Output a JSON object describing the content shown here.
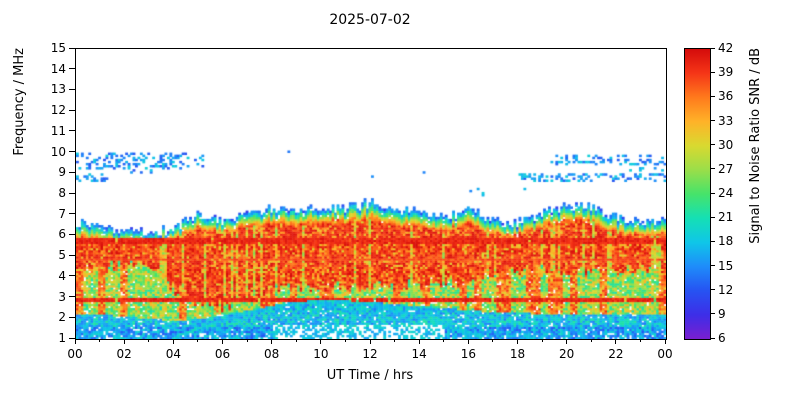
{
  "title": "2025-07-02",
  "axes": {
    "xlabel": "UT Time / hrs",
    "ylabel": "Frequency / MHz",
    "x_ticks": [
      "00",
      "02",
      "04",
      "06",
      "08",
      "10",
      "12",
      "14",
      "16",
      "18",
      "20",
      "22",
      "00"
    ],
    "x_minor_hours": [
      1,
      3,
      5,
      7,
      9,
      11,
      13,
      15,
      17,
      19,
      21,
      23
    ],
    "y_ticks": [
      "1",
      "2",
      "3",
      "4",
      "5",
      "6",
      "7",
      "8",
      "9",
      "10",
      "11",
      "12",
      "13",
      "14",
      "15"
    ],
    "x_range_hours": [
      0,
      24
    ],
    "y_range_mhz": [
      1,
      15
    ]
  },
  "colorbar": {
    "label": "Signal to Noise Ratio SNR / dB",
    "ticks": [
      "6",
      "9",
      "12",
      "15",
      "18",
      "21",
      "24",
      "27",
      "30",
      "33",
      "36",
      "39",
      "42"
    ],
    "range_db": [
      6,
      42
    ],
    "stops": [
      {
        "v": 6,
        "c": "#7a1fd0"
      },
      {
        "v": 9,
        "c": "#3d2ee8"
      },
      {
        "v": 12,
        "c": "#2653f2"
      },
      {
        "v": 15,
        "c": "#1e8cfa"
      },
      {
        "v": 18,
        "c": "#0fc6e8"
      },
      {
        "v": 21,
        "c": "#15e0b4"
      },
      {
        "v": 24,
        "c": "#46e36a"
      },
      {
        "v": 27,
        "c": "#9ade49"
      },
      {
        "v": 30,
        "c": "#d9d930"
      },
      {
        "v": 33,
        "c": "#ffb228"
      },
      {
        "v": 36,
        "c": "#ff7a1c"
      },
      {
        "v": 39,
        "c": "#f53517"
      },
      {
        "v": 42,
        "c": "#d40b0b"
      }
    ]
  },
  "chart_data": {
    "type": "heatmap",
    "title": "2025-07-02",
    "xlabel": "UT Time / hrs",
    "ylabel": "Frequency / MHz",
    "value_label": "Signal to Noise Ratio SNR / dB",
    "x_range_hours": [
      0,
      24
    ],
    "y_range_mhz": [
      1,
      15
    ],
    "snr_range_db": [
      6,
      42
    ],
    "hours": [
      0,
      1,
      2,
      3,
      4,
      5,
      6,
      7,
      8,
      9,
      10,
      11,
      12,
      13,
      14,
      15,
      16,
      17,
      18,
      19,
      20,
      21,
      22,
      23,
      24
    ],
    "envelope_top_mhz": [
      6.7,
      6.4,
      6.2,
      6.1,
      6.4,
      7.0,
      6.7,
      7.1,
      7.3,
      7.2,
      7.4,
      7.3,
      7.6,
      7.3,
      7.1,
      6.9,
      7.2,
      6.7,
      6.6,
      7.1,
      7.4,
      7.4,
      6.9,
      6.7,
      6.7
    ],
    "red_core_top_mhz": [
      5.9,
      5.7,
      5.6,
      5.5,
      5.8,
      6.3,
      6.1,
      6.4,
      6.6,
      6.5,
      6.7,
      6.6,
      6.8,
      6.5,
      6.4,
      6.2,
      6.5,
      6.0,
      6.0,
      6.4,
      6.7,
      6.6,
      6.1,
      6.0,
      6.0
    ],
    "red_core_bottom_mhz": [
      4.4,
      4.5,
      4.6,
      4.5,
      3.4,
      2.7,
      2.6,
      3.0,
      3.4,
      3.6,
      3.6,
      3.5,
      3.5,
      3.6,
      3.6,
      3.8,
      3.7,
      4.2,
      4.3,
      4.4,
      4.3,
      4.2,
      4.3,
      4.3,
      4.3
    ],
    "low_band_top_mhz": [
      2.2,
      2.2,
      2.1,
      2.0,
      1.9,
      2.0,
      2.2,
      2.4,
      2.6,
      2.7,
      2.8,
      2.8,
      2.8,
      2.7,
      2.6,
      2.5,
      2.4,
      2.3,
      2.3,
      2.2,
      2.2,
      2.2,
      2.2,
      2.2,
      2.2
    ],
    "persistent_interference_lines": [
      {
        "f": 2.9,
        "hw": 0.07,
        "snr": 40
      },
      {
        "f": 5.78,
        "hw": 0.15,
        "snr": 40
      },
      {
        "f": 4.85,
        "hw": 0.07,
        "snr": 38
      }
    ],
    "sporadic_e_arc": {
      "t0": 4,
      "t1": 16.5,
      "f_base": 1.1,
      "f_amp": 1.7,
      "snr": 18
    },
    "high_scatter_patches": [
      {
        "t0": 0,
        "t1": 4.6,
        "f0": 9.2,
        "f1": 10.0,
        "density": 0.3
      },
      {
        "t0": 0,
        "t1": 1.3,
        "f0": 8.6,
        "f1": 9.0,
        "density": 0.35
      },
      {
        "t0": 2.0,
        "t1": 3.2,
        "f0": 8.9,
        "f1": 9.3,
        "density": 0.15
      },
      {
        "t0": 4.4,
        "t1": 5.3,
        "f0": 9.3,
        "f1": 9.9,
        "density": 0.2
      },
      {
        "t0": 17.8,
        "t1": 24,
        "f0": 8.6,
        "f1": 8.95,
        "density": 0.28
      },
      {
        "t0": 19.3,
        "t1": 24,
        "f0": 9.4,
        "f1": 9.95,
        "density": 0.25
      },
      {
        "t0": 22.5,
        "t1": 24,
        "f0": 9.0,
        "f1": 9.3,
        "density": 0.2
      },
      {
        "t0": 16.1,
        "t1": 16.6,
        "f0": 7.9,
        "f1": 8.3,
        "density": 0.2
      }
    ],
    "snr_levels_db": {
      "red_core": [
        36,
        42
      ],
      "mixed_zone": [
        21,
        33
      ],
      "low_band": [
        12,
        22
      ],
      "fringe": [
        12,
        38
      ],
      "high_scatter": [
        12,
        19
      ]
    },
    "render_params": {
      "dt_hours": 0.1,
      "df_mhz": 0.1,
      "gap_prob": 0.07,
      "midday_gap": {
        "t0": 8,
        "t1": 15,
        "f_max": 1.7,
        "prob": 0.5
      }
    }
  }
}
